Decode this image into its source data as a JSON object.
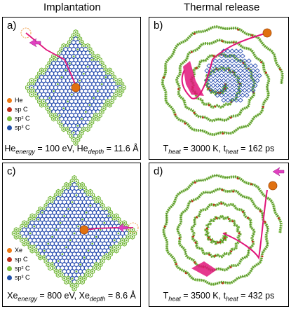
{
  "columns": {
    "left": "Implantation",
    "right": "Thermal release"
  },
  "panels": {
    "a": {
      "label": "a)",
      "caption_pre": "He",
      "caption_sub1": "energy",
      "caption_mid": " = 100 eV,  He",
      "caption_sub2": "depth",
      "caption_post": " = 11.6 Å"
    },
    "b": {
      "label": "b)",
      "caption_pre": "T",
      "caption_sub1": "heat",
      "caption_mid": " = 3000 K,  t",
      "caption_sub2": "heat",
      "caption_post": " = 162 ps"
    },
    "c": {
      "label": "c)",
      "caption_pre": "Xe",
      "caption_sub1": "energy",
      "caption_mid": " = 800 eV,  Xe",
      "caption_sub2": "depth",
      "caption_post": " = 8.6 Å"
    },
    "d": {
      "label": "d)",
      "caption_pre": "T",
      "caption_sub1": "heat",
      "caption_mid": " = 3500 K,  t",
      "caption_sub2": "heat",
      "caption_post": " = 432 ps"
    }
  },
  "legend_a": [
    {
      "text": "He",
      "color": "#f07a12"
    },
    {
      "text": "sp C",
      "color": "#c0301a"
    },
    {
      "text": "sp² C",
      "color": "#7cbf3a"
    },
    {
      "text": "sp³ C",
      "color": "#1f4fa8"
    }
  ],
  "legend_c": [
    {
      "text": "Xe",
      "color": "#f07a12"
    },
    {
      "text": "sp C",
      "color": "#c0301a"
    },
    {
      "text": "sp² C",
      "color": "#7cbf3a"
    },
    {
      "text": "sp³ C",
      "color": "#1f4fa8"
    }
  ],
  "colors": {
    "sp3": "#2b4fb0",
    "sp2": "#74b83a",
    "sp": "#c0301a",
    "ion": "#f07a12",
    "path": "#e0157a"
  }
}
